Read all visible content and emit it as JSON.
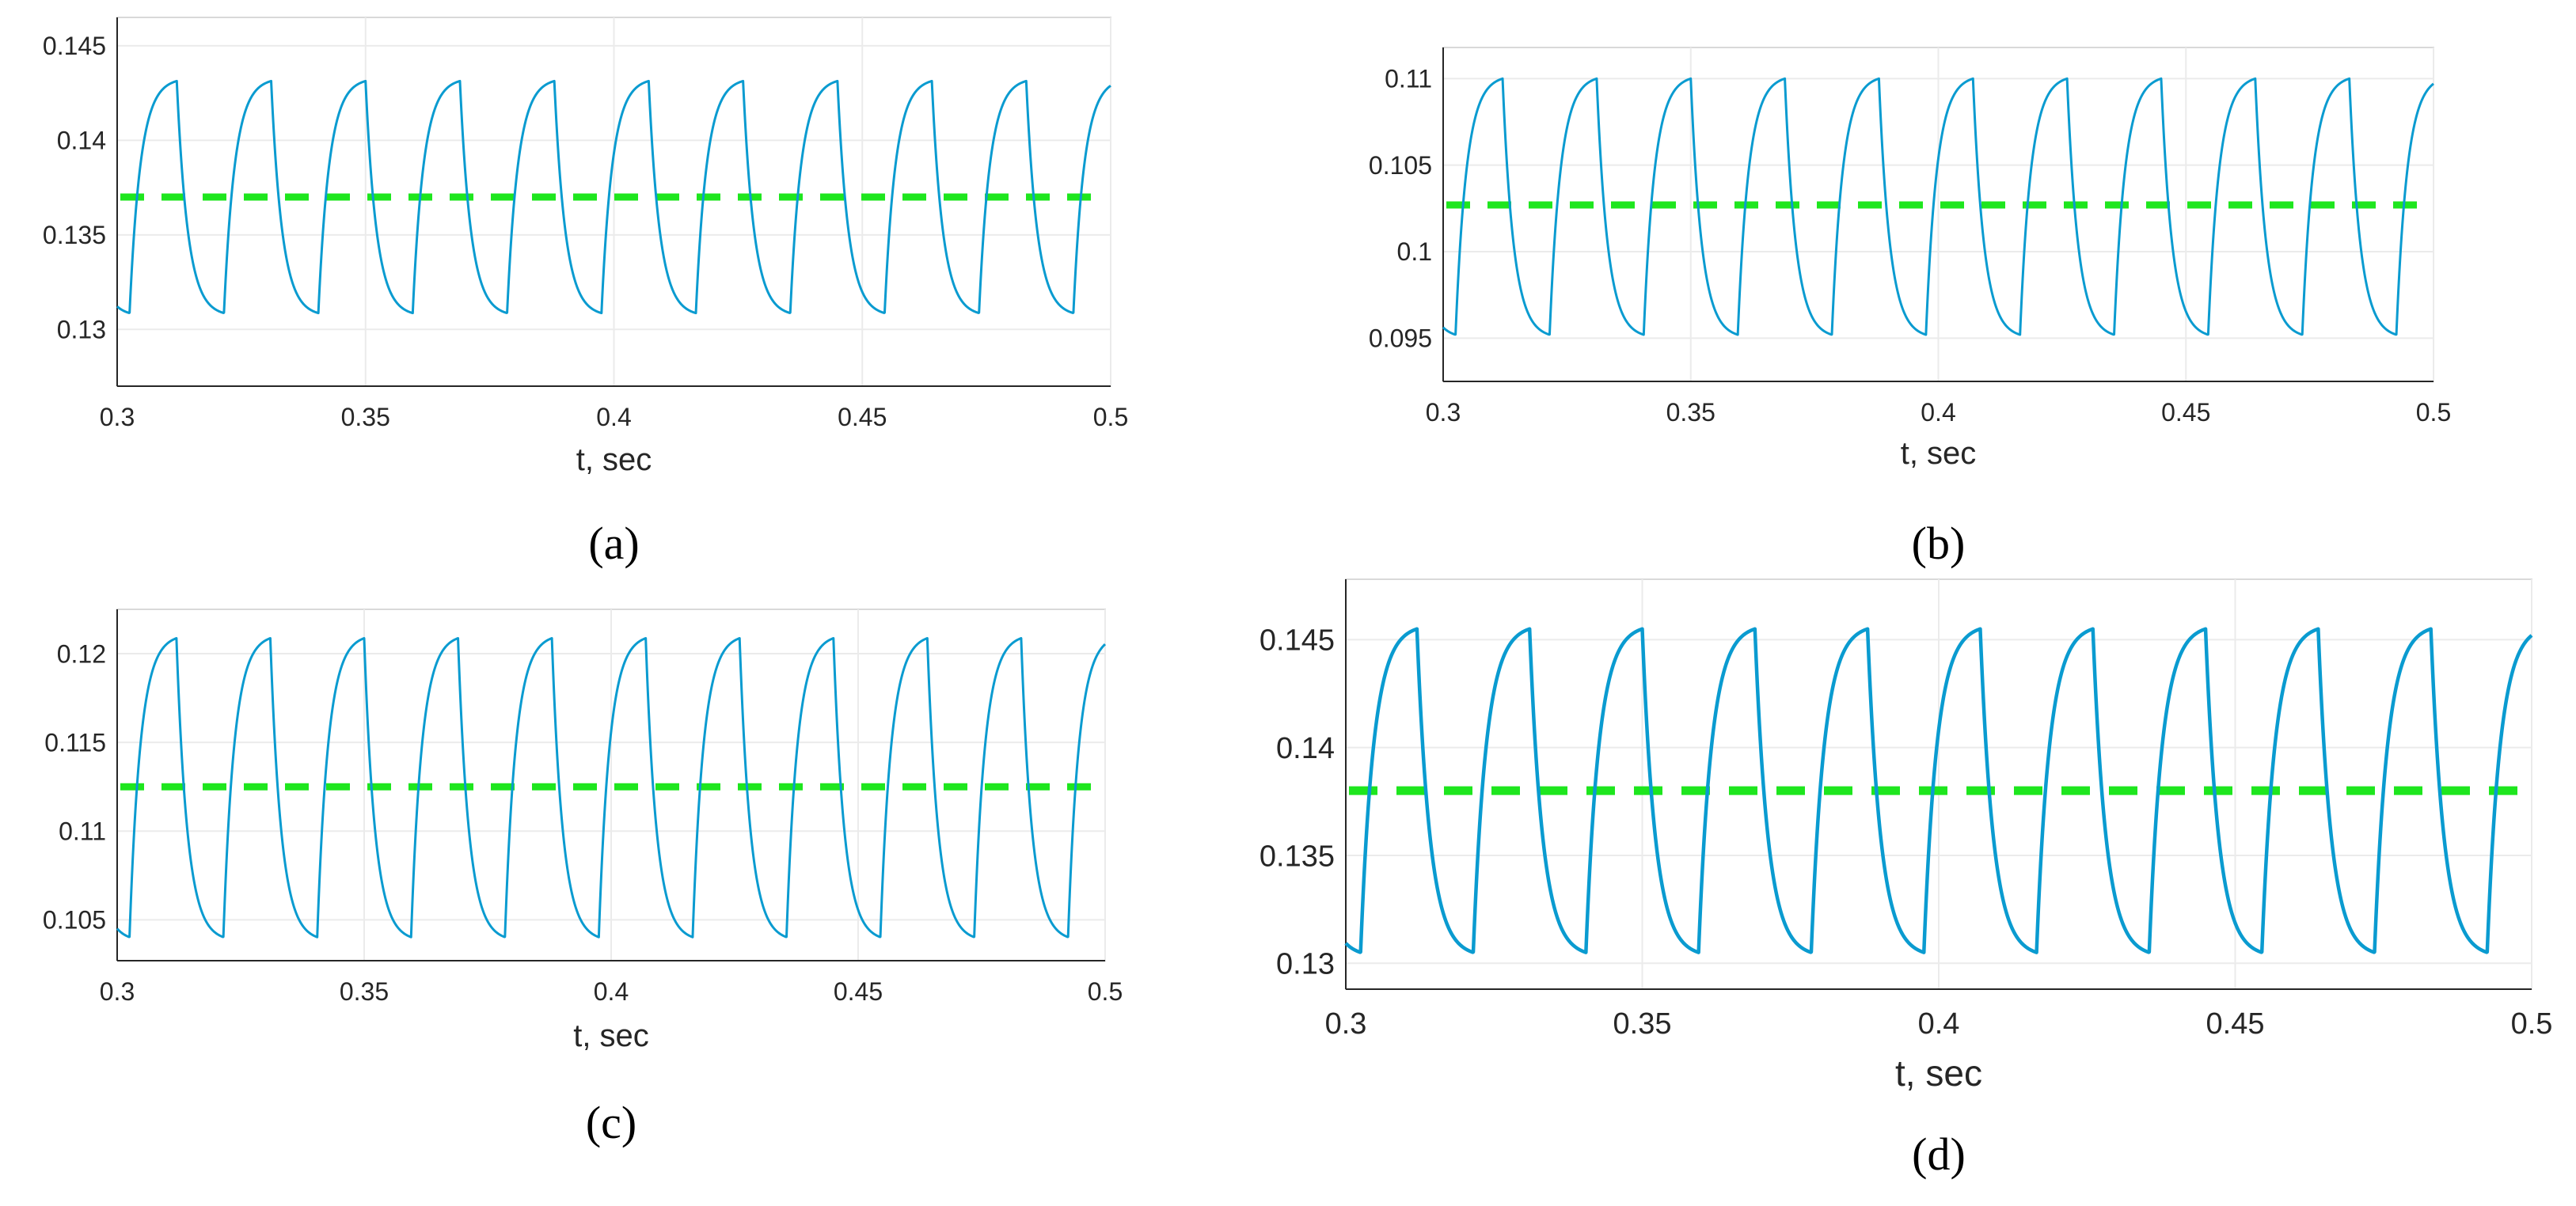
{
  "colors": {
    "signal": "#0a9bd0",
    "mean": "#1ee61e",
    "axis": "#262626",
    "grid": "#ebebeb"
  },
  "chart_data": [
    {
      "type": "line",
      "panel_label": "(a)",
      "xlabel": "t, sec",
      "ylabel": "",
      "xlim": [
        0.3,
        0.5
      ],
      "ylim": [
        0.127,
        0.1465
      ],
      "xticks": [
        "0.3",
        "0.35",
        "0.4",
        "0.45",
        "0.5"
      ],
      "yticks": [
        "0.13",
        "0.135",
        "0.14",
        "0.145"
      ],
      "ytick_values": [
        0.13,
        0.135,
        0.14,
        0.145
      ],
      "period": 0.019,
      "phase": 0.3025,
      "ymin": 0.1307,
      "ymax": 0.1433,
      "mean": 0.137,
      "grid": true
    },
    {
      "type": "line",
      "panel_label": "(b)",
      "xlabel": "t, sec",
      "ylabel": "",
      "xlim": [
        0.3,
        0.5
      ],
      "ylim": [
        0.0925,
        0.1118
      ],
      "xticks": [
        "0.3",
        "0.35",
        "0.4",
        "0.45",
        "0.5"
      ],
      "yticks": [
        "0.095",
        "0.1",
        "0.105",
        "0.11"
      ],
      "ytick_values": [
        0.095,
        0.1,
        0.105,
        0.11
      ],
      "period": 0.019,
      "phase": 0.3025,
      "ymin": 0.095,
      "ymax": 0.1102,
      "mean": 0.1027,
      "grid": true
    },
    {
      "type": "line",
      "panel_label": "(c)",
      "xlabel": "t, sec",
      "ylabel": "",
      "xlim": [
        0.3,
        0.5
      ],
      "ylim": [
        0.1027,
        0.1225
      ],
      "xticks": [
        "0.3",
        "0.35",
        "0.4",
        "0.45",
        "0.5"
      ],
      "yticks": [
        "0.105",
        "0.11",
        "0.115",
        "0.12"
      ],
      "ytick_values": [
        0.105,
        0.11,
        0.115,
        0.12
      ],
      "period": 0.019,
      "phase": 0.3025,
      "ymin": 0.1038,
      "ymax": 0.1211,
      "mean": 0.1125,
      "grid": true
    },
    {
      "type": "line",
      "panel_label": "(d)",
      "xlabel": "t, sec",
      "ylabel": "",
      "xlim": [
        0.3,
        0.5
      ],
      "ylim": [
        0.1288,
        0.1478
      ],
      "xticks": [
        "0.3",
        "0.35",
        "0.4",
        "0.45",
        "0.5"
      ],
      "yticks": [
        "0.13",
        "0.135",
        "0.14",
        "0.145"
      ],
      "ytick_values": [
        0.13,
        0.135,
        0.14,
        0.145
      ],
      "period": 0.019,
      "phase": 0.3025,
      "ymin": 0.1303,
      "ymax": 0.1457,
      "mean": 0.138,
      "grid": true
    }
  ]
}
